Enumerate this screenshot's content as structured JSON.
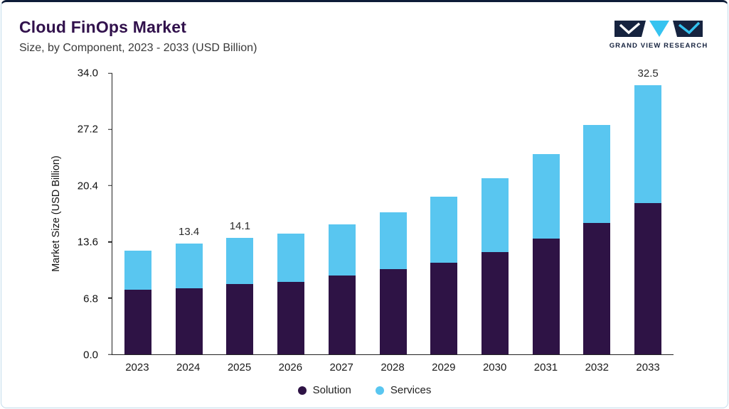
{
  "header": {
    "title": "Cloud FinOps Market",
    "subtitle": "Size, by Component, 2023 - 2033 (USD Billion)"
  },
  "logo": {
    "text": "GRAND VIEW RESEARCH"
  },
  "theme": {
    "navy": "#121F3C",
    "cyan": "#59C6F0",
    "purple": "#2E1345",
    "title_color": "#31114C",
    "border": "#C3DCEC"
  },
  "chart_data": {
    "type": "bar",
    "stacked": true,
    "title": "Cloud FinOps Market Size, by Component, 2023 - 2033 (USD Billion)",
    "ylabel": "Market Size (USD Billion)",
    "ylim": [
      0,
      34.0
    ],
    "ytick_labels": [
      "0.0",
      "6.8",
      "13.6",
      "20.4",
      "27.2",
      "34.0"
    ],
    "grid": false,
    "legend_position": "bottom",
    "categories": [
      "2023",
      "2024",
      "2025",
      "2026",
      "2027",
      "2028",
      "2029",
      "2030",
      "2031",
      "2032",
      "2033"
    ],
    "series": [
      {
        "name": "Solution",
        "color": "#2E1345",
        "values": [
          7.8,
          8.0,
          8.5,
          8.8,
          9.5,
          10.3,
          11.1,
          12.4,
          14.0,
          15.9,
          18.3
        ]
      },
      {
        "name": "Services",
        "color": "#59C6F0",
        "values": [
          4.7,
          5.4,
          5.6,
          5.8,
          6.2,
          6.9,
          8.0,
          8.9,
          10.2,
          11.8,
          14.2
        ]
      }
    ],
    "annotations": [
      {
        "category": "2024",
        "text": "13.4"
      },
      {
        "category": "2025",
        "text": "14.1"
      },
      {
        "category": "2033",
        "text": "32.5"
      }
    ]
  }
}
